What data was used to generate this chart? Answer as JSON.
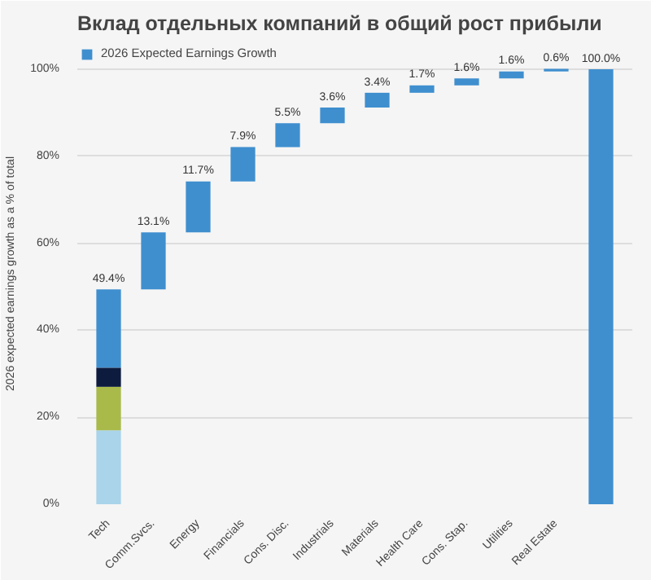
{
  "chart_data": {
    "type": "bar",
    "title": "Вклад отдельных компаний в общий рост прибыли",
    "ylabel": "2026 expected earnings growth as a % of total",
    "categories": [
      "Tech",
      "Comm.Svcs.",
      "Energy",
      "Financials",
      "Cons. Disc.",
      "Industrials",
      "Materials",
      "Health Care",
      "Cons. Stap.",
      "Utilities",
      "Real Estate",
      null
    ],
    "series": [
      {
        "color": "#a9d4ea",
        "base": [
          0,
          null,
          null,
          null,
          null,
          null,
          null,
          null,
          null,
          null,
          null,
          null
        ],
        "values": [
          17,
          null,
          null,
          null,
          null,
          null,
          null,
          null,
          null,
          null,
          null,
          null
        ]
      },
      {
        "color": "#a9ba4a",
        "base": [
          17,
          null,
          null,
          null,
          null,
          null,
          null,
          null,
          null,
          null,
          null,
          null
        ],
        "values": [
          10,
          null,
          null,
          null,
          null,
          null,
          null,
          null,
          null,
          null,
          null,
          null
        ]
      },
      {
        "color": "#0d1b3e",
        "base": [
          27,
          null,
          null,
          null,
          null,
          null,
          null,
          null,
          null,
          null,
          null,
          null
        ],
        "values": [
          4.4,
          null,
          null,
          null,
          null,
          null,
          null,
          null,
          null,
          null,
          null,
          null
        ]
      },
      {
        "name": "2026 Expected Earnings Growth",
        "color": "#3f8fcf",
        "base": [
          31.4,
          49.4,
          62.5,
          74.2,
          82.1,
          87.6,
          91.2,
          94.6,
          96.3,
          97.9,
          99.5,
          0
        ],
        "values": [
          18,
          13.1,
          11.7,
          7.9,
          5.5,
          3.6,
          3.4,
          1.7,
          1.6,
          1.6,
          0.6,
          100.0
        ]
      }
    ],
    "totals": [
      "49.4%",
      "13.1%",
      "11.7%",
      "7.9%",
      "5.5%",
      "3.6%",
      "3.4%",
      "1.7%",
      "1.6%",
      "1.6%",
      "0.6%",
      "100.0%"
    ],
    "ylim": [
      0,
      106
    ],
    "yticks": [
      {
        "value": 0,
        "label": "0%"
      },
      {
        "value": 20,
        "label": "20%"
      },
      {
        "value": 40,
        "label": "40%"
      },
      {
        "value": 60,
        "label": "60%"
      },
      {
        "value": 80,
        "label": "80%"
      },
      {
        "value": 100,
        "label": "100%"
      }
    ],
    "grid": "y",
    "legend": "top"
  }
}
